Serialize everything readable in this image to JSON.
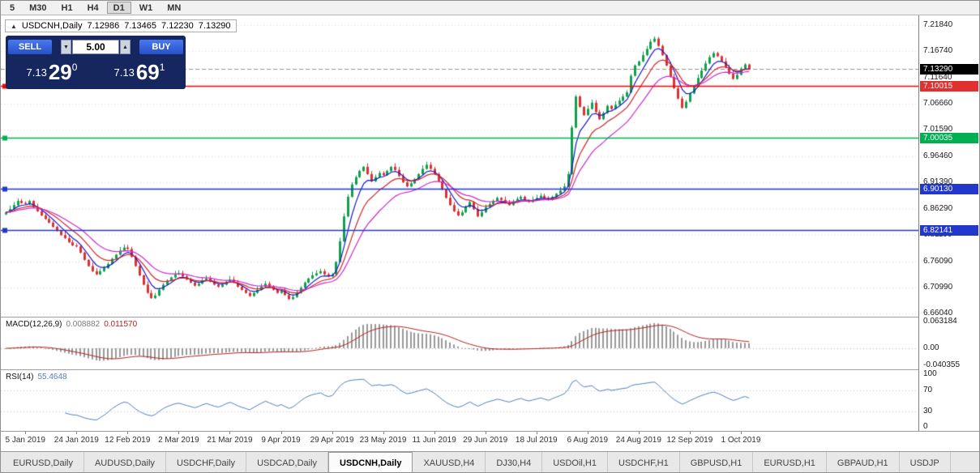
{
  "toolbar": {
    "timeframes": [
      "5",
      "M30",
      "H1",
      "H4",
      "D1",
      "W1",
      "MN"
    ],
    "active": "D1"
  },
  "chart_header": {
    "symbol_label": "USDCNH,Daily",
    "open": "7.12986",
    "high": "7.13465",
    "low": "7.12230",
    "close": "7.13290"
  },
  "icons": {
    "panel_toggle": "▲",
    "volume_up": "▲",
    "volume_down": "▼"
  },
  "trade_panel": {
    "sell_label": "SELL",
    "buy_label": "BUY",
    "volume": "5.00",
    "sell_price": {
      "prefix": "7.13",
      "big": "29",
      "sup": "0"
    },
    "buy_price": {
      "prefix": "7.13",
      "big": "69",
      "sup": "1"
    }
  },
  "price_scale": {
    "tags": [
      {
        "text": "7.13290",
        "price": 7.1329,
        "bg": "#000000"
      },
      {
        "text": "7.10015",
        "price": 7.10015,
        "bg": "#e03030"
      },
      {
        "text": "7.00035",
        "price": 7.00035,
        "bg": "#00b050"
      },
      {
        "text": "6.90130",
        "price": 6.9013,
        "bg": "#2238cc"
      },
      {
        "text": "6.82141",
        "price": 6.82141,
        "bg": "#2238cc"
      }
    ]
  },
  "indicators": {
    "macd": {
      "label": "MACD(12,26,9)",
      "value1": "0.008882",
      "value2": "0.011570",
      "scale": [
        "0.063184",
        "0.00",
        "-0.040355"
      ]
    },
    "rsi": {
      "label": "RSI(14)",
      "value": "55.4648",
      "scale": [
        "100",
        "70",
        "30",
        "0"
      ]
    }
  },
  "tabs": {
    "items": [
      "EURUSD,Daily",
      "AUDUSD,Daily",
      "USDCHF,Daily",
      "USDCAD,Daily",
      "USDCNH,Daily",
      "XAUUSD,H4",
      "DJ30,H4",
      "USDOil,H1",
      "USDCHF,H1",
      "GBPUSD,H1",
      "EURUSD,H1",
      "GBPAUD,H1",
      "USDJP"
    ],
    "active_index": 4
  },
  "chart_data": {
    "type": "candlestick",
    "symbol": "USDCNH",
    "timeframe": "Daily",
    "ohlc_display": {
      "open": "7.12986",
      "high": "7.13465",
      "low": "7.12230",
      "close": "7.13290"
    },
    "bid": 7.1329,
    "ylim": [
      6.6541,
      7.237
    ],
    "price_ticks": [
      7.2184,
      7.1674,
      7.1164,
      7.0666,
      7.0159,
      6.9646,
      6.9139,
      6.8629,
      6.8119,
      6.7609,
      6.7099,
      6.6604
    ],
    "x_labels": [
      "5 Jan 2019",
      "24 Jan 2019",
      "12 Feb 2019",
      "2 Mar 2019",
      "21 Mar 2019",
      "9 Apr 2019",
      "29 Apr 2019",
      "23 May 2019",
      "11 Jun 2019",
      "29 Jun 2019",
      "18 Jul 2019",
      "6 Aug 2019",
      "24 Aug 2019",
      "12 Sep 2019",
      "1 Oct 2019"
    ],
    "x_label_indices": [
      5,
      18,
      31,
      44,
      57,
      70,
      83,
      96,
      109,
      122,
      135,
      148,
      161,
      174,
      187
    ],
    "close": [
      6.856,
      6.862,
      6.87,
      6.878,
      6.874,
      6.872,
      6.878,
      6.866,
      6.858,
      6.85,
      6.843,
      6.836,
      6.828,
      6.82,
      6.812,
      6.806,
      6.798,
      6.792,
      6.79,
      6.778,
      6.764,
      6.752,
      6.742,
      6.736,
      6.742,
      6.748,
      6.756,
      6.766,
      6.774,
      6.782,
      6.788,
      6.785,
      6.77,
      6.752,
      6.734,
      6.716,
      6.7,
      6.69,
      6.695,
      6.706,
      6.716,
      6.724,
      6.73,
      6.736,
      6.738,
      6.732,
      6.726,
      6.72,
      6.714,
      6.718,
      6.724,
      6.728,
      6.722,
      6.716,
      6.712,
      6.716,
      6.722,
      6.726,
      6.72,
      6.712,
      6.706,
      6.7,
      6.694,
      6.7,
      6.706,
      6.712,
      6.718,
      6.712,
      6.706,
      6.7,
      6.704,
      6.696,
      6.688,
      6.692,
      6.7,
      6.71,
      6.72,
      6.728,
      6.734,
      6.738,
      6.742,
      6.736,
      6.732,
      6.736,
      6.76,
      6.8,
      6.848,
      6.886,
      6.91,
      6.924,
      6.936,
      6.944,
      6.93,
      6.916,
      6.924,
      6.932,
      6.928,
      6.936,
      6.944,
      6.938,
      6.926,
      6.914,
      6.906,
      6.912,
      6.92,
      6.93,
      6.94,
      6.948,
      6.94,
      6.93,
      6.916,
      6.9,
      6.884,
      6.87,
      6.858,
      6.85,
      6.856,
      6.866,
      6.876,
      6.862,
      6.848,
      6.856,
      6.866,
      6.872,
      6.878,
      6.884,
      6.88,
      6.874,
      6.87,
      6.876,
      6.882,
      6.886,
      6.88,
      6.876,
      6.88,
      6.884,
      6.888,
      6.884,
      6.88,
      6.886,
      6.892,
      6.898,
      6.906,
      6.93,
      7.02,
      7.08,
      7.06,
      7.044,
      7.056,
      7.068,
      7.05,
      7.036,
      7.048,
      7.062,
      7.056,
      7.064,
      7.072,
      7.08,
      7.088,
      7.12,
      7.14,
      7.148,
      7.16,
      7.172,
      7.186,
      7.192,
      7.178,
      7.16,
      7.14,
      7.118,
      7.096,
      7.076,
      7.058,
      7.07,
      7.086,
      7.1,
      7.116,
      7.13,
      7.144,
      7.156,
      7.164,
      7.158,
      7.148,
      7.136,
      7.124,
      7.114,
      7.122,
      7.134,
      7.142,
      7.133
    ],
    "levels": [
      {
        "price": 7.10015,
        "color": "#ff0000"
      },
      {
        "price": 7.00035,
        "color": "#00b050"
      },
      {
        "price": 6.9013,
        "color": "#2238cc"
      },
      {
        "price": 6.82141,
        "color": "#2238cc"
      }
    ],
    "colors": {
      "up": "#0fa04c",
      "down": "#e03030",
      "ma_fast": "#1a1acd",
      "ma_mid": "#d02828",
      "ma_slow": "#cc2ccc",
      "macd_hist": "#9a9a9a",
      "macd_signal": "#b22222",
      "rsi_line": "#4f81bd"
    },
    "indicator_params": {
      "macd": [
        12,
        26,
        9
      ],
      "macd_range": [
        -0.040355,
        0.063184
      ],
      "rsi_period": 14,
      "rsi_levels": [
        70,
        30
      ]
    }
  }
}
